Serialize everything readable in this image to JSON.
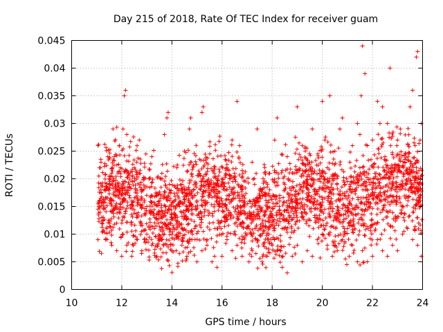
{
  "chart_data": {
    "type": "scatter",
    "title": "Day 215 of 2018, Rate Of TEC Index for receiver guam",
    "xlabel": "GPS time / hours",
    "ylabel": "ROTI / TECUs",
    "xlim": [
      10,
      24
    ],
    "ylim": [
      0,
      0.045
    ],
    "xticks": [
      10,
      12,
      14,
      16,
      18,
      20,
      22,
      24
    ],
    "xtick_labels": [
      "10",
      "12",
      "14",
      "16",
      "18",
      "20",
      "22",
      "24"
    ],
    "yticks": [
      0,
      0.005,
      0.01,
      0.015,
      0.02,
      0.025,
      0.03,
      0.035,
      0.04,
      0.045
    ],
    "ytick_labels": [
      "0",
      "0.005",
      "0.01",
      "0.015",
      "0.02",
      "0.025",
      "0.03",
      "0.035",
      "0.04",
      "0.045"
    ],
    "grid": true,
    "marker": "+",
    "color": "#ff0000",
    "series": [
      {
        "name": "ROTI",
        "x": [
          11.05,
          11.1,
          11.15,
          11.2,
          11.3,
          11.4,
          11.5,
          11.6,
          11.7,
          11.8,
          11.9,
          12.0,
          12.05,
          12.1,
          12.15,
          12.2,
          12.3,
          12.4,
          12.5,
          12.6,
          12.7,
          12.8,
          12.9,
          13.0,
          13.1,
          13.2,
          13.3,
          13.4,
          13.5,
          13.6,
          13.7,
          13.8,
          13.85,
          13.9,
          14.0,
          14.1,
          14.2,
          14.3,
          14.4,
          14.5,
          14.6,
          14.7,
          14.75,
          14.8,
          14.9,
          15.0,
          15.1,
          15.2,
          15.25,
          15.3,
          15.4,
          15.5,
          15.6,
          15.7,
          15.8,
          15.9,
          16.0,
          16.1,
          16.2,
          16.3,
          16.4,
          16.5,
          16.6,
          16.7,
          16.8,
          16.9,
          17.0,
          17.1,
          17.2,
          17.3,
          17.4,
          17.5,
          17.6,
          17.7,
          17.8,
          17.9,
          18.0,
          18.1,
          18.2,
          18.3,
          18.4,
          18.5,
          18.6,
          18.7,
          18.8,
          18.9,
          19.0,
          19.1,
          19.2,
          19.3,
          19.4,
          19.5,
          19.6,
          19.7,
          19.8,
          19.9,
          20.0,
          20.1,
          20.2,
          20.3,
          20.4,
          20.5,
          20.6,
          20.7,
          20.8,
          20.9,
          21.0,
          21.1,
          21.2,
          21.3,
          21.4,
          21.5,
          21.55,
          21.6,
          21.7,
          21.8,
          21.9,
          22.0,
          22.1,
          22.2,
          22.3,
          22.4,
          22.5,
          22.6,
          22.7,
          22.8,
          22.9,
          23.0,
          23.1,
          23.2,
          23.3,
          23.4,
          23.5,
          23.6,
          23.7,
          23.75,
          23.8,
          23.9,
          23.95,
          11.05,
          11.2,
          11.35,
          11.6,
          11.8,
          12.0,
          12.2,
          12.4,
          12.6,
          12.8,
          13.0,
          13.2,
          13.4,
          13.6,
          13.8,
          14.0,
          14.2,
          14.4,
          14.6,
          14.8,
          15.0,
          15.2,
          15.4,
          15.6,
          15.8,
          16.0,
          16.2,
          16.4,
          16.6,
          16.8,
          17.0,
          17.2,
          17.4,
          17.6,
          17.8,
          18.0,
          18.2,
          18.4,
          18.6,
          18.8,
          19.0,
          19.2,
          19.4,
          19.6,
          19.8,
          20.0,
          20.2,
          20.4,
          20.6,
          20.8,
          21.0,
          21.2,
          21.4,
          21.6,
          21.8,
          22.0,
          22.2,
          22.4,
          22.6,
          22.8,
          23.0,
          23.2,
          23.4,
          23.6,
          23.8,
          23.95,
          11.1,
          11.5,
          11.9,
          12.3,
          12.7,
          13.1,
          13.5,
          13.9,
          14.3,
          14.7,
          15.1,
          15.5,
          15.9,
          16.3,
          16.7,
          17.1,
          17.5,
          17.9,
          18.3,
          18.7,
          19.1,
          19.5,
          19.9,
          20.3,
          20.7,
          21.1,
          21.5,
          21.9,
          22.3,
          22.7,
          23.1,
          23.5,
          23.9
        ],
        "y": [
          0.009,
          0.016,
          0.022,
          0.013,
          0.018,
          0.011,
          0.02,
          0.014,
          0.024,
          0.017,
          0.026,
          0.012,
          0.029,
          0.035,
          0.036,
          0.028,
          0.019,
          0.016,
          0.022,
          0.013,
          0.027,
          0.018,
          0.009,
          0.015,
          0.02,
          0.024,
          0.011,
          0.017,
          0.014,
          0.021,
          0.028,
          0.031,
          0.032,
          0.018,
          0.013,
          0.016,
          0.022,
          0.012,
          0.019,
          0.025,
          0.015,
          0.029,
          0.031,
          0.017,
          0.011,
          0.016,
          0.021,
          0.032,
          0.033,
          0.014,
          0.009,
          0.012,
          0.018,
          0.006,
          0.011,
          0.016,
          0.02,
          0.013,
          0.022,
          0.017,
          0.027,
          0.021,
          0.034,
          0.026,
          0.018,
          0.014,
          0.011,
          0.016,
          0.023,
          0.019,
          0.029,
          0.017,
          0.012,
          0.022,
          0.015,
          0.018,
          0.013,
          0.027,
          0.031,
          0.016,
          0.011,
          0.019,
          0.024,
          0.013,
          0.015,
          0.021,
          0.033,
          0.018,
          0.026,
          0.014,
          0.019,
          0.023,
          0.029,
          0.013,
          0.016,
          0.021,
          0.034,
          0.027,
          0.022,
          0.035,
          0.018,
          0.025,
          0.015,
          0.029,
          0.031,
          0.019,
          0.014,
          0.023,
          0.026,
          0.018,
          0.03,
          0.028,
          0.035,
          0.044,
          0.039,
          0.026,
          0.015,
          0.027,
          0.021,
          0.034,
          0.03,
          0.033,
          0.024,
          0.03,
          0.04,
          0.022,
          0.018,
          0.027,
          0.019,
          0.015,
          0.023,
          0.021,
          0.033,
          0.036,
          0.026,
          0.042,
          0.043,
          0.027,
          0.03,
          0.026,
          0.012,
          0.009,
          0.008,
          0.007,
          0.006,
          0.008,
          0.006,
          0.009,
          0.007,
          0.01,
          0.008,
          0.006,
          0.009,
          0.011,
          0.007,
          0.01,
          0.008,
          0.006,
          0.009,
          0.005,
          0.007,
          0.008,
          0.005,
          0.004,
          0.006,
          0.009,
          0.007,
          0.008,
          0.006,
          0.01,
          0.007,
          0.009,
          0.005,
          0.006,
          0.008,
          0.007,
          0.004,
          0.003,
          0.006,
          0.008,
          0.005,
          0.007,
          0.006,
          0.009,
          0.01,
          0.008,
          0.006,
          0.007,
          0.009,
          0.011,
          0.008,
          0.005,
          0.007,
          0.005,
          0.006,
          0.009,
          0.007,
          0.006,
          0.008,
          0.007,
          0.01,
          0.011,
          0.009,
          0.008,
          0.006,
          0.015,
          0.019,
          0.014,
          0.017,
          0.021,
          0.014,
          0.016,
          0.019,
          0.015,
          0.018,
          0.013,
          0.017,
          0.015,
          0.02,
          0.016,
          0.014,
          0.018,
          0.021,
          0.017,
          0.015,
          0.019,
          0.016,
          0.02,
          0.018,
          0.016,
          0.019,
          0.022,
          0.019,
          0.017,
          0.02,
          0.018,
          0.021,
          0.019
        ]
      }
    ]
  }
}
